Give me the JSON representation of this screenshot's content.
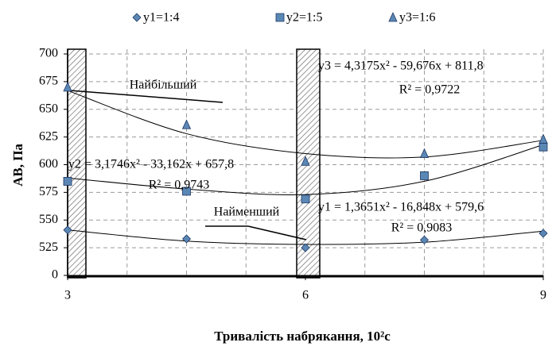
{
  "chart_data": {
    "type": "scatter",
    "x_label": "Тривалість набрякання, 10²с",
    "y_label": "АВ, Па",
    "xlim": [
      3,
      9
    ],
    "xticks": [
      3,
      6,
      9
    ],
    "xgrid": [
      3.75,
      4.5,
      5.25,
      6.75,
      7.5,
      8.25,
      9
    ],
    "ylim": [
      500,
      700
    ],
    "yticks": [
      {
        "value": 500,
        "label": "0"
      },
      525,
      550,
      575,
      600,
      625,
      650,
      675,
      700
    ],
    "grid": true,
    "x": [
      3,
      4.5,
      6,
      7.5,
      9
    ],
    "series": [
      {
        "name": "y1=1:4",
        "marker": "diamond",
        "color": "#5b87b5",
        "values": [
          541,
          533,
          525,
          532,
          538
        ],
        "trend": [
          541,
          531,
          528,
          530,
          540
        ]
      },
      {
        "name": "y2=1:5",
        "marker": "square",
        "color": "#5b87b5",
        "values": [
          585,
          576,
          569,
          590,
          616
        ],
        "trend": [
          588,
          578,
          573,
          585,
          618
        ]
      },
      {
        "name": "y3=1:6",
        "marker": "triangle",
        "color": "#5b87b5",
        "values": [
          670,
          636,
          603,
          610,
          623
        ],
        "trend": [
          667,
          628,
          610,
          607,
          622
        ]
      }
    ],
    "annotations": [
      "y3 = 4,3175x² - 59,676x + 811,8",
      "R² = 0,9722",
      "y2 = 3,1746x² - 33,162x + 657,8",
      "R² = 0,9743",
      "y1 = 1,3651x² - 16,848x + 579,6",
      "R² = 0,9083",
      "Найбільший",
      "Найменший"
    ]
  }
}
